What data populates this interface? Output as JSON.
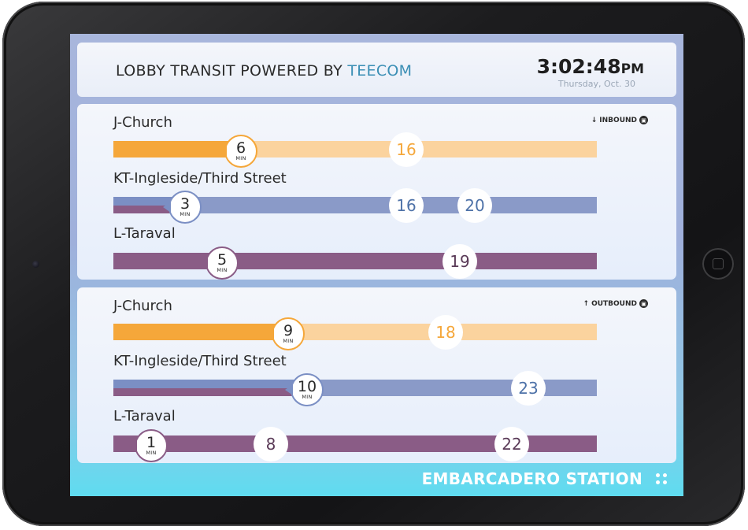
{
  "header": {
    "title_prefix": "LOBBY TRANSIT POWERED BY ",
    "brand": "TEECOM",
    "time": "3:02:48",
    "ampm": "PM",
    "date": "Thursday, Oct. 30"
  },
  "minute_unit": "MIN",
  "inbound": {
    "direction_label": "INBOUND",
    "direction_arrow": "↓",
    "routes": [
      {
        "name": "J-Church",
        "arrivals": [
          "6",
          "16"
        ],
        "color": "#f5a73a",
        "track_color": "#fbd39e"
      },
      {
        "name": "KT-Ingleside/Third Street",
        "arrivals": [
          "3",
          "16",
          "20"
        ],
        "color": "#7b8fc4",
        "track_color": "#8a9ac8"
      },
      {
        "name": "L-Taraval",
        "arrivals": [
          "5",
          "19"
        ],
        "color": "#8a5c86",
        "track_color": "#8a5c86"
      }
    ]
  },
  "outbound": {
    "direction_label": "OUTBOUND",
    "direction_arrow": "↑",
    "routes": [
      {
        "name": "J-Church",
        "arrivals": [
          "9",
          "18"
        ],
        "color": "#f5a73a",
        "track_color": "#fbd39e"
      },
      {
        "name": "KT-Ingleside/Third Street",
        "arrivals": [
          "10",
          "23"
        ],
        "color": "#7b8fc4",
        "track_color": "#8a9ac8"
      },
      {
        "name": "L-Taraval",
        "arrivals": [
          "1",
          "8",
          "22"
        ],
        "color": "#8a5c86",
        "track_color": "#8a5c86"
      }
    ]
  },
  "footer": {
    "station": "EMBARCADERO STATION"
  },
  "icons": {
    "train": "train-icon",
    "menu": "menu-dots-icon"
  }
}
